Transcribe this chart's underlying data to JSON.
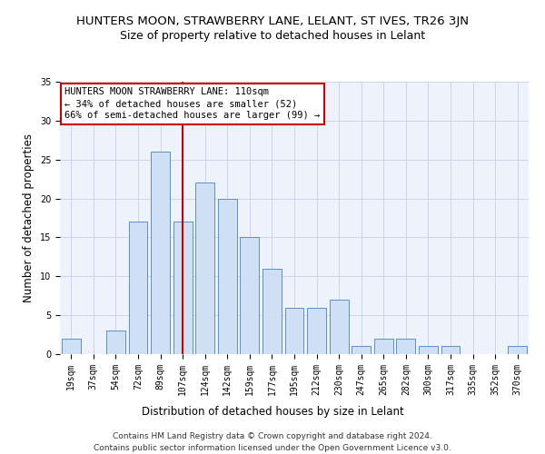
{
  "title": "HUNTERS MOON, STRAWBERRY LANE, LELANT, ST IVES, TR26 3JN",
  "subtitle": "Size of property relative to detached houses in Lelant",
  "xlabel": "Distribution of detached houses by size in Lelant",
  "ylabel": "Number of detached properties",
  "categories": [
    "19sqm",
    "37sqm",
    "54sqm",
    "72sqm",
    "89sqm",
    "107sqm",
    "124sqm",
    "142sqm",
    "159sqm",
    "177sqm",
    "195sqm",
    "212sqm",
    "230sqm",
    "247sqm",
    "265sqm",
    "282sqm",
    "300sqm",
    "317sqm",
    "335sqm",
    "352sqm",
    "370sqm"
  ],
  "values": [
    2,
    0,
    3,
    17,
    26,
    17,
    22,
    20,
    15,
    11,
    6,
    6,
    7,
    1,
    2,
    2,
    1,
    1,
    0,
    0,
    1
  ],
  "bar_color": "#cfe0f4",
  "bar_edge_color": "#5b8fc9",
  "vline_x_index": 5,
  "vline_color": "#cc0000",
  "annotation_text": "HUNTERS MOON STRAWBERRY LANE: 110sqm\n← 34% of detached houses are smaller (52)\n66% of semi-detached houses are larger (99) →",
  "annotation_box_color": "#ffffff",
  "annotation_box_edge": "#cc0000",
  "ylim": [
    0,
    35
  ],
  "yticks": [
    0,
    5,
    10,
    15,
    20,
    25,
    30,
    35
  ],
  "footer": "Contains HM Land Registry data © Crown copyright and database right 2024.\nContains public sector information licensed under the Open Government Licence v3.0.",
  "bg_color": "#eef2fb",
  "title_fontsize": 9.5,
  "subtitle_fontsize": 9,
  "axis_label_fontsize": 8.5,
  "tick_fontsize": 7,
  "footer_fontsize": 6.5,
  "annotation_fontsize": 7.5
}
